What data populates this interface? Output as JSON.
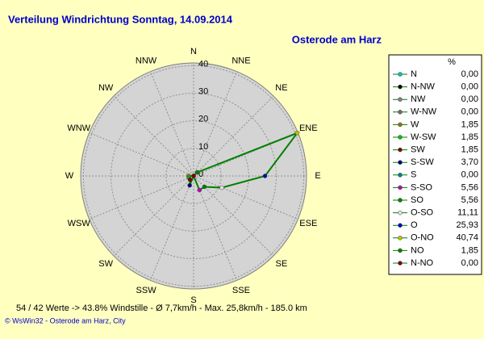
{
  "chart_data": {
    "type": "polar",
    "title": "Verteilung Windrichtung   Sonntag, 14.09.2014",
    "subtitle": "Osterode am Harz",
    "direction": "counterclockwise",
    "categories": [
      "N",
      "NNW",
      "NW",
      "WNW",
      "W",
      "WSW",
      "SW",
      "SSW",
      "S",
      "SSE",
      "SE",
      "ESE",
      "E",
      "ENE",
      "NE",
      "NNE"
    ],
    "point_names": [
      "N",
      "N-NW",
      "NW",
      "W-NW",
      "W",
      "W-SW",
      "SW",
      "S-SW",
      "S",
      "S-SO",
      "SO",
      "O-SO",
      "O",
      "O-NO",
      "NO",
      "N-NO"
    ],
    "values": [
      0,
      0,
      0,
      0,
      1.85,
      1.85,
      1.85,
      3.7,
      0,
      5.56,
      5.56,
      11.11,
      25.93,
      40.74,
      1.85,
      0
    ],
    "value_labels": [
      "0,00",
      "0,00",
      "0,00",
      "0,00",
      "1,85",
      "1,85",
      "1,85",
      "3,70",
      "0,00",
      "5,56",
      "5,56",
      "11,11",
      "25,93",
      "40,74",
      "1,85",
      "0,00"
    ],
    "colors": [
      "#00c0c0",
      "#000000",
      "#808080",
      "#806080",
      "#808000",
      "#00c000",
      "#800000",
      "#000080",
      "#008080",
      "#c000c0",
      "#008000",
      "#e0e0e0",
      "#0000c0",
      "#c0c000",
      "#008000",
      "#800000"
    ],
    "line_color": "#008000",
    "legend_header": "%",
    "rlim": [
      0,
      41
    ],
    "rticks": [
      0,
      10,
      20,
      30,
      40
    ],
    "grid": true,
    "footer": "54 / 42 Werte  -> 43.8% Windstille   -   Ø 7,7km/h   -   Max. 25,8km/h   -   185.0 km",
    "credit": "© WsWin32  -  Osterode am Harz, City"
  }
}
